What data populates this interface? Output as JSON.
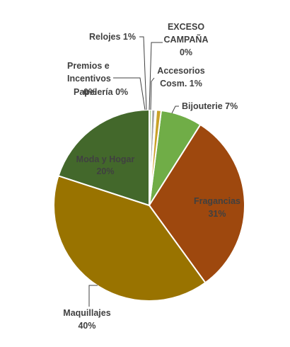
{
  "chart_data": {
    "type": "pie",
    "title": "",
    "slices": [
      {
        "label": "Bijouterie",
        "value": 7,
        "display": "7%",
        "color": "#70ad47"
      },
      {
        "label": "Fragancias",
        "value": 31,
        "display": "31%",
        "color": "#9e480e"
      },
      {
        "label": "Maquillajes",
        "value": 40,
        "display": "40%",
        "color": "#997300"
      },
      {
        "label": "Moda y Hogar",
        "value": 20,
        "display": "20%",
        "color": "#43682b"
      },
      {
        "label": "Papelería",
        "value": 0,
        "display": "0%",
        "color": "#d9d9d9"
      },
      {
        "label": "Premios e Incentivos",
        "value": 0.4,
        "display": "0%",
        "color": "#a9d18e"
      },
      {
        "label": "Relojes",
        "value": 0.6,
        "display": "1%",
        "color": "#a5a5a5"
      },
      {
        "label": "EXCESO CAMPAÑA",
        "value": 0.2,
        "display": "0%",
        "color": "#ffc000"
      },
      {
        "label": "Accesorios Cosm.",
        "value": 0.8,
        "display": "1%",
        "color": "#c9a227"
      }
    ],
    "legend": "none",
    "data_labels": "category-and-percent"
  },
  "labels": {
    "bijouterie": "Bijouterie 7%",
    "fragancias_name": "Fragancias",
    "fragancias_pct": "31%",
    "maquillajes_name": "Maquillajes",
    "maquillajes_pct": "40%",
    "moda_name": "Moda y Hogar",
    "moda_pct": "20%",
    "papeleria": "Papelería 0%",
    "premios_l1": "Premios e",
    "premios_l2": "Incentivos",
    "premios_pct": "0%",
    "relojes": "Relojes 1%",
    "exceso_l1": "EXCESO",
    "exceso_l2": "CAMPAÑA",
    "exceso_pct": "0%",
    "accesorios_l1": "Accesorios",
    "accesorios_l2": "Cosm. 1%"
  }
}
